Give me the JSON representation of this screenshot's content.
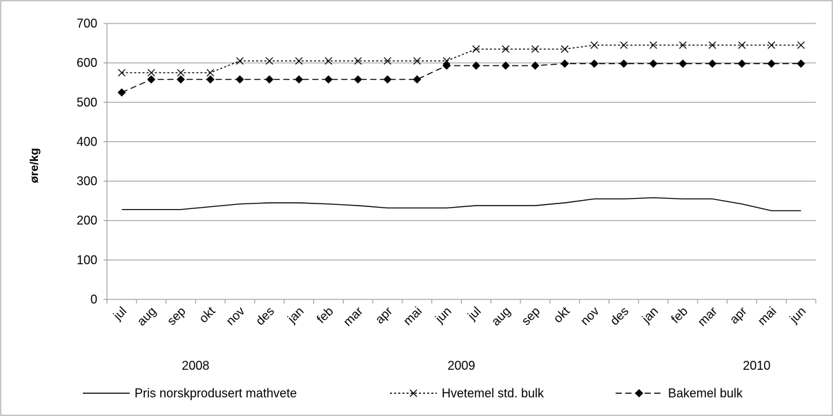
{
  "chart_data": {
    "type": "line",
    "title": "",
    "xlabel": "",
    "ylabel": "øre/kg",
    "ylim": [
      0,
      700
    ],
    "yticks": [
      0,
      100,
      200,
      300,
      400,
      500,
      600,
      700
    ],
    "grid": true,
    "legend_position": "bottom",
    "categories": [
      "jul",
      "aug",
      "sep",
      "okt",
      "nov",
      "des",
      "jan",
      "feb",
      "mar",
      "apr",
      "mai",
      "jun",
      "jul",
      "aug",
      "sep",
      "okt",
      "nov",
      "des",
      "jan",
      "feb",
      "mar",
      "apr",
      "mai",
      "jun"
    ],
    "year_labels": [
      "2008",
      "2009",
      "2010"
    ],
    "series": [
      {
        "name": "Pris norskprodusert mathvete",
        "style": "solid",
        "marker": "none",
        "color": "#000000",
        "values": [
          228,
          228,
          228,
          235,
          242,
          245,
          245,
          242,
          238,
          232,
          232,
          232,
          238,
          238,
          238,
          245,
          255,
          255,
          258,
          255,
          255,
          242,
          225,
          225
        ]
      },
      {
        "name": "Hvetemel std. bulk",
        "style": "dotted",
        "marker": "x",
        "color": "#000000",
        "values": [
          575,
          575,
          575,
          575,
          605,
          605,
          605,
          605,
          605,
          605,
          605,
          605,
          635,
          635,
          635,
          635,
          645,
          645,
          645,
          645,
          645,
          645,
          645,
          645
        ]
      },
      {
        "name": "Bakemel bulk",
        "style": "dashed",
        "marker": "diamond",
        "color": "#000000",
        "values": [
          525,
          558,
          558,
          558,
          558,
          558,
          558,
          558,
          558,
          558,
          558,
          593,
          593,
          593,
          593,
          598,
          598,
          598,
          598,
          598,
          598,
          598,
          598,
          598
        ]
      }
    ]
  }
}
